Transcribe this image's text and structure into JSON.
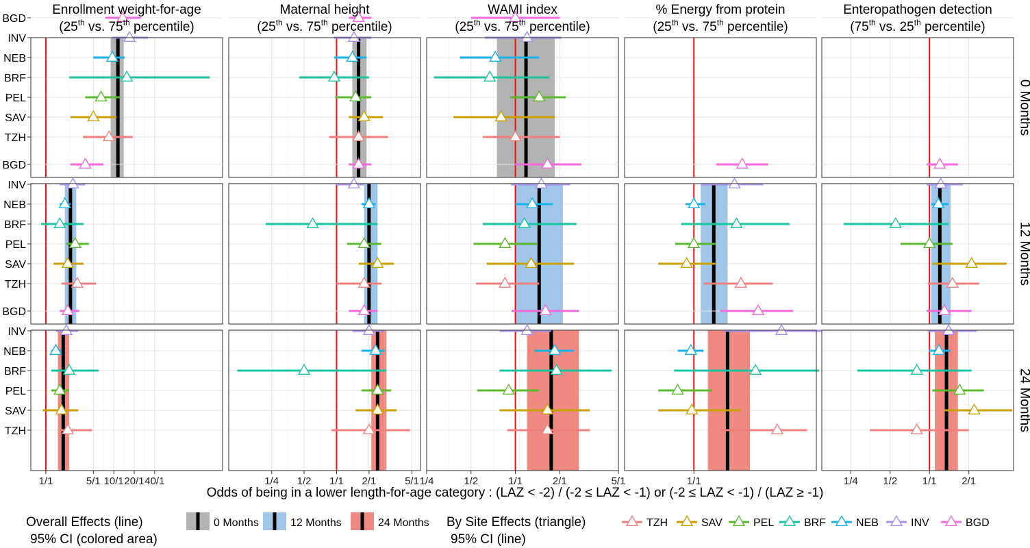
{
  "figure": {
    "xaxis_label": "Odds of being in a lower length-for-age category : (LAZ < -2) / (-2 ≤ LAZ < -1) or (-2 ≤ LAZ < -1) / (LAZ ≥ -1)",
    "legend": {
      "overall_title_line1": "Overall Effects (line)",
      "overall_title_line2": "95% CI (colored area)",
      "overall_items": [
        {
          "label": "0 Months",
          "color": "#b3b3b3"
        },
        {
          "label": "12 Months",
          "color": "#9fc5e8"
        },
        {
          "label": "24 Months",
          "color": "#ee8a82"
        }
      ],
      "site_title_line1": "By Site Effects (triangle)",
      "site_title_line2": "95% CI (line)",
      "site_items": [
        {
          "label": "TZH",
          "color": "#f08080"
        },
        {
          "label": "SAV",
          "color": "#c9a000"
        },
        {
          "label": "PEL",
          "color": "#5cb82e"
        },
        {
          "label": "BRF",
          "color": "#1ac4a0"
        },
        {
          "label": "NEB",
          "color": "#1ab2e8"
        },
        {
          "label": "INV",
          "color": "#a98ef0"
        },
        {
          "label": "BGD",
          "color": "#f06ad8"
        }
      ]
    }
  },
  "chart_data": {
    "type": "scatter",
    "x_scale": "log",
    "x_reference": 1,
    "sites": [
      "BGD",
      "INV",
      "NEB",
      "BRF",
      "PEL",
      "SAV",
      "TZH"
    ],
    "site_colors": {
      "BGD": "#f06ad8",
      "INV": "#a98ef0",
      "NEB": "#1ab2e8",
      "BRF": "#1ac4a0",
      "PEL": "#5cb82e",
      "SAV": "#c9a000",
      "TZH": "#f08080"
    },
    "rows": [
      {
        "label": "0 Months",
        "color": "#b3b3b3"
      },
      {
        "label": "12 Months",
        "color": "#9fc5e8"
      },
      {
        "label": "24 Months",
        "color": "#ee8a82"
      }
    ],
    "columns": [
      {
        "title_pre": "Enrollment weight-for-age",
        "title_a": "(25",
        "title_b": " vs. 75",
        "title_c": " percentile)",
        "sup": "th",
        "xlim": [
          0.6,
          400
        ],
        "ticks": [
          {
            "v": 1,
            "label": "1/1"
          },
          {
            "v": 5,
            "label": "5/1"
          },
          {
            "v": 10,
            "label": "10/1"
          },
          {
            "v": 20,
            "label": "20/1"
          },
          {
            "v": 40,
            "label": "40/1"
          }
        ],
        "panels": [
          {
            "overall": 11.5,
            "ci": [
              9.0,
              14.0
            ],
            "sites": [
              [
                13.5,
                7.5,
                25
              ],
              [
                17,
                9.5,
                32
              ],
              [
                9.5,
                5.0,
                14.5
              ],
              [
                15.5,
                2.2,
                260
              ],
              [
                6.5,
                3.8,
                12.5
              ],
              [
                5.0,
                2.3,
                11.0
              ],
              [
                8.5,
                3.5,
                19
              ]
            ]
          },
          {
            "overall": 2.3,
            "ci": [
              1.9,
              2.8
            ],
            "sites": [
              [
                3.8,
                2.3,
                7.0
              ],
              [
                2.5,
                1.6,
                3.8
              ],
              [
                1.9,
                1.6,
                2.3
              ],
              [
                1.6,
                0.85,
                3.6
              ],
              [
                2.7,
                2.0,
                4.3
              ],
              [
                2.1,
                1.3,
                3.6
              ],
              [
                2.9,
                1.7,
                5.5
              ]
            ]
          },
          {
            "overall": 1.8,
            "ci": [
              1.5,
              2.2
            ],
            "sites": [
              [
                2.1,
                1.6,
                3.1
              ],
              [
                2.0,
                1.4,
                3.0
              ],
              [
                1.4,
                1.2,
                1.7
              ],
              [
                2.2,
                1.2,
                6.0
              ],
              [
                1.6,
                1.2,
                2.2
              ],
              [
                1.7,
                0.9,
                3.0
              ],
              [
                2.1,
                1.5,
                4.8
              ]
            ]
          }
        ]
      },
      {
        "title_pre": "Maternal height",
        "title_a": "(25",
        "title_b": " vs. 75",
        "title_c": " percentile)",
        "sup": "th",
        "xlim": [
          0.1,
          6
        ],
        "ticks": [
          {
            "v": 0.25,
            "label": "1/4"
          },
          {
            "v": 0.5,
            "label": "1/2"
          },
          {
            "v": 1,
            "label": "1/1"
          },
          {
            "v": 2,
            "label": "2/1"
          },
          {
            "v": 5,
            "label": "5/1"
          }
        ],
        "panels": [
          {
            "overall": 1.6,
            "ci": [
              1.4,
              1.9
            ],
            "sites": [
              [
                1.6,
                1.3,
                2.1
              ],
              [
                1.45,
                0.95,
                2.1
              ],
              [
                1.4,
                0.95,
                1.9
              ],
              [
                0.95,
                0.45,
                2.0
              ],
              [
                1.5,
                0.97,
                2.1
              ],
              [
                1.8,
                1.3,
                2.7
              ],
              [
                1.6,
                0.85,
                3.0
              ]
            ]
          },
          {
            "overall": 2.0,
            "ci": [
              1.8,
              2.4
            ],
            "sites": [
              [
                1.6,
                1.3,
                2.1
              ],
              [
                1.45,
                0.98,
                1.8
              ],
              [
                2.0,
                1.7,
                2.3
              ],
              [
                0.6,
                0.22,
                2.4
              ],
              [
                1.8,
                1.25,
                2.6
              ],
              [
                2.4,
                1.6,
                3.4
              ],
              [
                1.8,
                1.0,
                2.6
              ]
            ]
          },
          {
            "overall": 2.4,
            "ci": [
              2.1,
              2.9
            ],
            "sites": [
              [
                1.8,
                1.3,
                2.4
              ],
              [
                2.0,
                1.4,
                2.8
              ],
              [
                2.3,
                1.7,
                2.8
              ],
              [
                0.5,
                0.12,
                2.9
              ],
              [
                2.4,
                1.7,
                3.2
              ],
              [
                2.4,
                1.5,
                3.6
              ],
              [
                2.0,
                0.9,
                4.8
              ]
            ]
          }
        ]
      },
      {
        "title_pre": "WAMI index",
        "title_a": "(25",
        "title_b": " vs. 75",
        "title_c": " percentile)",
        "sup": "th",
        "xlim": [
          0.25,
          5
        ],
        "ticks": [
          {
            "v": 0.25,
            "label": "1/4"
          },
          {
            "v": 0.5,
            "label": "1/2"
          },
          {
            "v": 1,
            "label": "1/1"
          },
          {
            "v": 2,
            "label": "2/1"
          },
          {
            "v": 5,
            "label": "5/1"
          }
        ],
        "panels": [
          {
            "overall": 1.18,
            "ci": [
              0.75,
              1.85
            ],
            "sites": [
              [
                1.0,
                0.5,
                2.0
              ],
              [
                1.2,
                0.62,
                2.05
              ],
              [
                0.73,
                0.42,
                1.45
              ],
              [
                0.67,
                0.28,
                1.7
              ],
              [
                1.45,
                0.92,
                2.2
              ],
              [
                0.8,
                0.38,
                1.85
              ],
              [
                1.0,
                0.6,
                2.0
              ]
            ]
          },
          {
            "overall": 1.45,
            "ci": [
              1.0,
              2.1
            ],
            "sites": [
              [
                1.65,
                0.98,
                2.8
              ],
              [
                1.5,
                0.93,
                2.35
              ],
              [
                1.3,
                1.0,
                1.8
              ],
              [
                1.15,
                0.6,
                2.6
              ],
              [
                0.85,
                0.52,
                1.4
              ],
              [
                1.28,
                0.64,
                2.5
              ],
              [
                0.85,
                0.54,
                1.45
              ]
            ]
          },
          {
            "overall": 1.75,
            "ci": [
              1.2,
              2.7
            ],
            "sites": [
              [
                1.6,
                0.94,
                2.7
              ],
              [
                1.2,
                0.78,
                1.75
              ],
              [
                1.85,
                1.35,
                2.5
              ],
              [
                1.9,
                0.78,
                4.5
              ],
              [
                0.9,
                0.55,
                1.45
              ],
              [
                1.65,
                0.78,
                3.2
              ],
              [
                1.65,
                0.88,
                3.2
              ]
            ]
          }
        ]
      },
      {
        "title_pre": "% Energy from protein",
        "title_a": "(25",
        "title_b": " vs. 75",
        "title_c": " percentile)",
        "sup": "th",
        "xlim": [
          0.5,
          3.4
        ],
        "ticks": [
          {
            "v": 1,
            "label": "1/1"
          }
        ],
        "panels": [
          {
            "overall": null,
            "ci": null,
            "sites": []
          },
          {
            "overall": 1.22,
            "ci": [
              1.07,
              1.4
            ],
            "sites": [
              [
                1.62,
                1.25,
                2.1
              ],
              [
                1.5,
                1.08,
                2.0
              ],
              [
                1.0,
                0.92,
                1.12
              ],
              [
                1.53,
                0.88,
                2.6
              ],
              [
                1.0,
                0.83,
                1.25
              ],
              [
                0.93,
                0.7,
                1.25
              ],
              [
                1.6,
                1.1,
                2.2
              ]
            ]
          },
          {
            "overall": 1.4,
            "ci": [
              1.15,
              1.75
            ],
            "sites": [
              [
                1.9,
                1.3,
                2.7
              ],
              [
                2.4,
                1.35,
                3.7
              ],
              [
                0.97,
                0.85,
                1.1
              ],
              [
                1.85,
                0.82,
                3.5
              ],
              [
                0.85,
                0.7,
                1.2
              ],
              [
                0.98,
                0.7,
                1.6
              ],
              [
                2.3,
                1.3,
                3.1
              ]
            ]
          }
        ]
      },
      {
        "title_pre": "Enteropathogen detection",
        "title_a": "(75",
        "title_b": " vs. 25",
        "title_c": " percentile)",
        "sup": "th",
        "xlim": [
          0.15,
          4.4
        ],
        "ticks": [
          {
            "v": 0.25,
            "label": "1/4"
          },
          {
            "v": 0.5,
            "label": "1/2"
          },
          {
            "v": 1,
            "label": "1/1"
          },
          {
            "v": 2,
            "label": "2/1"
          }
        ],
        "panels": [
          {
            "overall": null,
            "ci": null,
            "sites": []
          },
          {
            "overall": 1.2,
            "ci": [
              1.03,
              1.45
            ],
            "sites": [
              [
                1.2,
                0.95,
                1.65
              ],
              [
                1.22,
                0.95,
                1.8
              ],
              [
                1.17,
                1.03,
                1.4
              ],
              [
                0.55,
                0.22,
                1.4
              ],
              [
                1.0,
                0.6,
                1.5
              ],
              [
                2.1,
                1.05,
                3.9
              ],
              [
                1.5,
                0.97,
                2.4
              ]
            ]
          },
          {
            "overall": 1.35,
            "ci": [
              1.1,
              1.65
            ],
            "sites": [
              [
                1.3,
                0.95,
                2.1
              ],
              [
                1.4,
                0.97,
                2.3
              ],
              [
                1.18,
                0.99,
                1.45
              ],
              [
                0.8,
                0.28,
                2.1
              ],
              [
                1.7,
                1.05,
                2.6
              ],
              [
                2.2,
                1.3,
                4.3
              ],
              [
                0.8,
                0.35,
                2.0
              ]
            ]
          }
        ]
      }
    ]
  }
}
